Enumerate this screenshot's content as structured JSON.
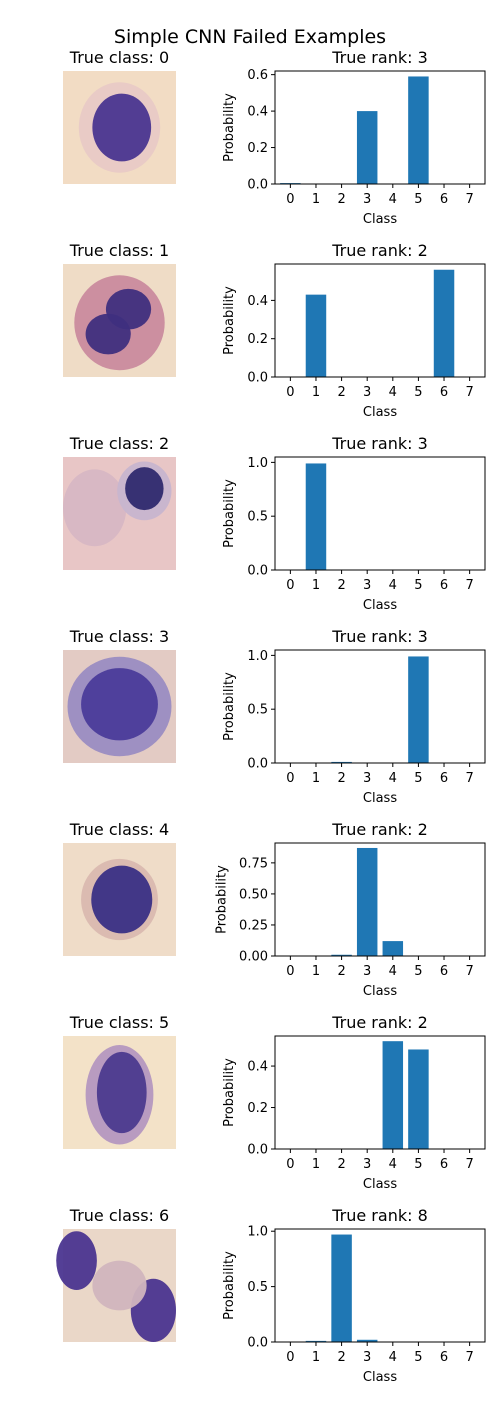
{
  "figure": {
    "title": "Simple CNN Failed Examples",
    "x_label": "Class",
    "y_label": "Probability"
  },
  "colors": {
    "bar": "#1f77b4",
    "axis": "#000000",
    "background": "#ffffff"
  },
  "rows": [
    {
      "image_title": "True class: 0",
      "image_desc": "purple-stained cell, round dark nucleus on pale background",
      "chart_data": {
        "type": "bar",
        "title": "True rank: 3",
        "xlabel": "Class",
        "ylabel": "Probability",
        "categories": [
          "0",
          "1",
          "2",
          "3",
          "4",
          "5",
          "6",
          "7"
        ],
        "values": [
          0.005,
          0.0,
          0.0,
          0.4,
          0.0,
          0.59,
          0.0,
          0.0
        ],
        "ylim": [
          0,
          0.62
        ],
        "yticks": [
          0.0,
          0.2,
          0.4,
          0.6
        ],
        "ytick_labels": [
          "0.0",
          "0.2",
          "0.4",
          "0.6"
        ]
      }
    },
    {
      "image_title": "True class: 1",
      "image_desc": "multi-lobed nucleus cell with pinkish cytoplasm",
      "chart_data": {
        "type": "bar",
        "title": "True rank: 2",
        "xlabel": "Class",
        "ylabel": "Probability",
        "categories": [
          "0",
          "1",
          "2",
          "3",
          "4",
          "5",
          "6",
          "7"
        ],
        "values": [
          0.0,
          0.43,
          0.0,
          0.0,
          0.0,
          0.0,
          0.56,
          0.0
        ],
        "ylim": [
          0,
          0.59
        ],
        "yticks": [
          0.0,
          0.2,
          0.4
        ],
        "ytick_labels": [
          "0.0",
          "0.2",
          "0.4"
        ]
      }
    },
    {
      "image_title": "True class: 2",
      "image_desc": "small dark nucleus cell at top right, pale pink background",
      "chart_data": {
        "type": "bar",
        "title": "True rank: 3",
        "xlabel": "Class",
        "ylabel": "Probability",
        "categories": [
          "0",
          "1",
          "2",
          "3",
          "4",
          "5",
          "6",
          "7"
        ],
        "values": [
          0.0,
          0.99,
          0.0,
          0.0,
          0.0,
          0.0,
          0.0,
          0.0
        ],
        "ylim": [
          0,
          1.05
        ],
        "yticks": [
          0.0,
          0.5,
          1.0
        ],
        "ytick_labels": [
          "0.0",
          "0.5",
          "1.0"
        ]
      }
    },
    {
      "image_title": "True class: 3",
      "image_desc": "large round purple cell filling the frame",
      "chart_data": {
        "type": "bar",
        "title": "True rank: 3",
        "xlabel": "Class",
        "ylabel": "Probability",
        "categories": [
          "0",
          "1",
          "2",
          "3",
          "4",
          "5",
          "6",
          "7"
        ],
        "values": [
          0.0,
          0.0,
          0.01,
          0.0,
          0.0,
          0.99,
          0.0,
          0.0
        ],
        "ylim": [
          0,
          1.05
        ],
        "yticks": [
          0.0,
          0.5,
          1.0
        ],
        "ytick_labels": [
          "0.0",
          "0.5",
          "1.0"
        ]
      }
    },
    {
      "image_title": "True class: 4",
      "image_desc": "round dark nucleus cell among pale red cells",
      "chart_data": {
        "type": "bar",
        "title": "True rank: 2",
        "xlabel": "Class",
        "ylabel": "Probability",
        "categories": [
          "0",
          "1",
          "2",
          "3",
          "4",
          "5",
          "6",
          "7"
        ],
        "values": [
          0.0,
          0.0,
          0.01,
          0.87,
          0.12,
          0.0,
          0.0,
          0.0
        ],
        "ylim": [
          0,
          0.91
        ],
        "yticks": [
          0.0,
          0.25,
          0.5,
          0.75
        ],
        "ytick_labels": [
          "0.00",
          "0.25",
          "0.50",
          "0.75"
        ]
      }
    },
    {
      "image_title": "True class: 5",
      "image_desc": "oval purple cell on pale background",
      "chart_data": {
        "type": "bar",
        "title": "True rank: 2",
        "xlabel": "Class",
        "ylabel": "Probability",
        "categories": [
          "0",
          "1",
          "2",
          "3",
          "4",
          "5",
          "6",
          "7"
        ],
        "values": [
          0.0,
          0.0,
          0.0,
          0.0,
          0.52,
          0.48,
          0.0,
          0.0
        ],
        "ylim": [
          0,
          0.545
        ],
        "yticks": [
          0.0,
          0.2,
          0.4
        ],
        "ytick_labels": [
          "0.0",
          "0.2",
          "0.4"
        ]
      }
    },
    {
      "image_title": "True class: 6",
      "image_desc": "segmented purple nuclei at left and right edges",
      "chart_data": {
        "type": "bar",
        "title": "True rank: 8",
        "xlabel": "Class",
        "ylabel": "Probability",
        "categories": [
          "0",
          "1",
          "2",
          "3",
          "4",
          "5",
          "6",
          "7"
        ],
        "values": [
          0.0,
          0.01,
          0.97,
          0.02,
          0.0,
          0.0,
          0.0,
          0.0
        ],
        "ylim": [
          0,
          1.02
        ],
        "yticks": [
          0.0,
          0.5,
          1.0
        ],
        "ytick_labels": [
          "0.0",
          "0.5",
          "1.0"
        ]
      }
    }
  ]
}
